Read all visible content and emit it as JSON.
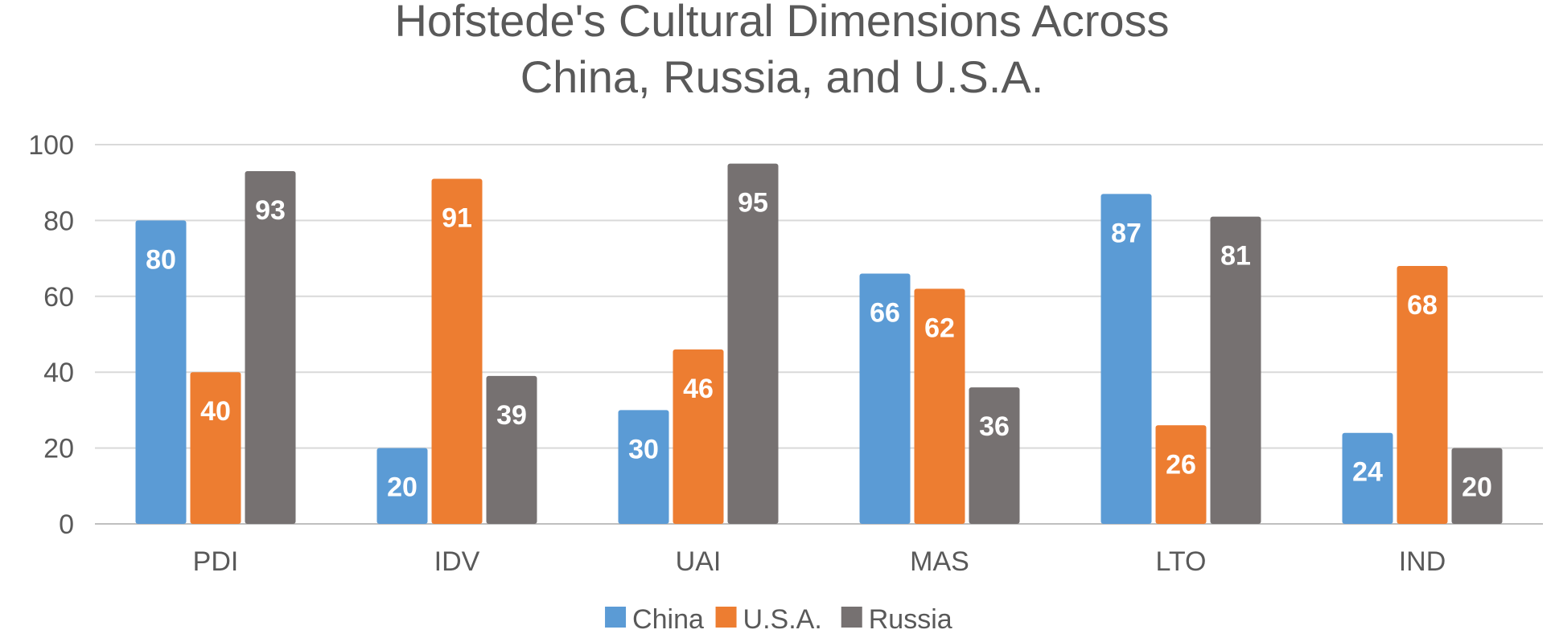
{
  "chart_data": {
    "type": "bar",
    "title_lines": [
      "Hofstede's Cultural Dimensions Across",
      "China, Russia, and U.S.A."
    ],
    "categories": [
      "PDI",
      "IDV",
      "UAI",
      "MAS",
      "LTO",
      "IND"
    ],
    "series": [
      {
        "name": "China",
        "color": "#5b9bd5",
        "values": [
          80,
          20,
          30,
          66,
          87,
          24
        ]
      },
      {
        "name": "U.S.A.",
        "color": "#ed7d31",
        "values": [
          40,
          91,
          46,
          62,
          26,
          68
        ]
      },
      {
        "name": "Russia",
        "color": "#767171",
        "values": [
          93,
          39,
          95,
          36,
          81,
          20
        ]
      }
    ],
    "ylim": [
      0,
      100
    ],
    "yticks": [
      0,
      20,
      40,
      60,
      80,
      100
    ],
    "grid": true,
    "legend_position": "bottom",
    "data_labels": true
  }
}
